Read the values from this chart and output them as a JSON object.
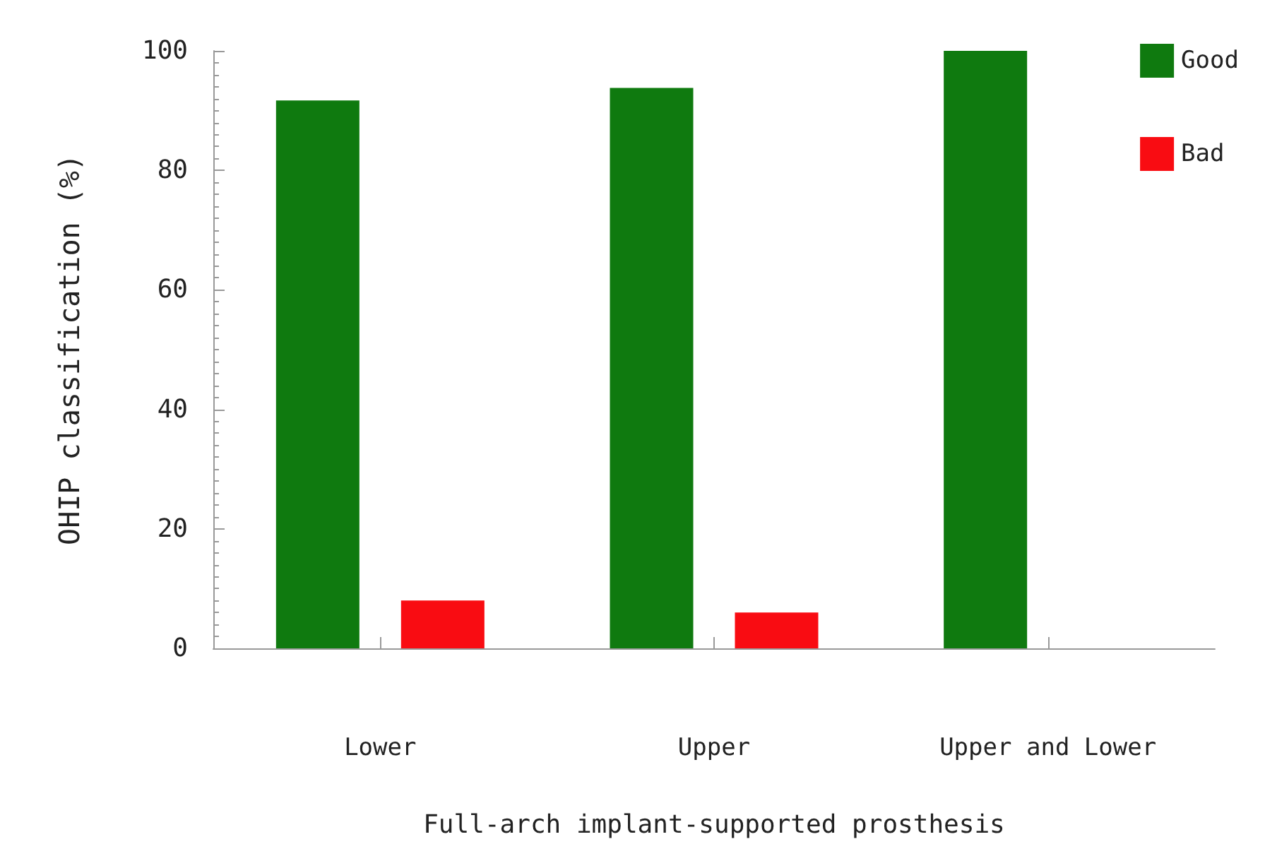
{
  "chart_data": {
    "type": "bar",
    "xlabel": "Full-arch implant-supported prosthesis",
    "ylabel": "OHIP classification (%)",
    "categories": [
      "Lower",
      "Upper",
      "Upper and Lower"
    ],
    "series": [
      {
        "name": "Good",
        "color": "#0f7a0f",
        "values": [
          91.7,
          93.8,
          100
        ]
      },
      {
        "name": "Bad",
        "color": "#f90c12",
        "values": [
          8.0,
          6.0,
          null
        ]
      }
    ],
    "ylim": [
      0,
      100
    ],
    "yticks": [
      0,
      20,
      40,
      60,
      80,
      100
    ],
    "grid": false,
    "legend": "top right"
  }
}
